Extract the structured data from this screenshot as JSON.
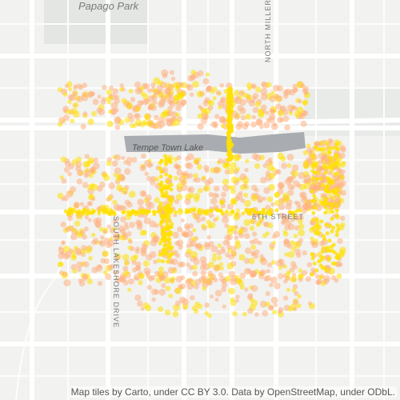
{
  "map": {
    "labels": {
      "park": "Papago Park",
      "lake": "Tempe Town Lake",
      "north_street": "NORTH MILLER",
      "south_street": "SOUTH LAKESHORE DRIVE",
      "sixth_street": "6TH STREET"
    },
    "attribution": "Map tiles by Carto, under CC BY 3.0. Data by OpenStreetMap, under ODbL.",
    "colors": {
      "background": "#f2f2f0",
      "road": "#ffffff",
      "park": "#e6e8e6",
      "lake": "#a9adb1",
      "point_outer": "#ffb080",
      "point_inner": "#ffe000"
    },
    "overlay": {
      "type": "density-points",
      "description_visible": false
    }
  }
}
